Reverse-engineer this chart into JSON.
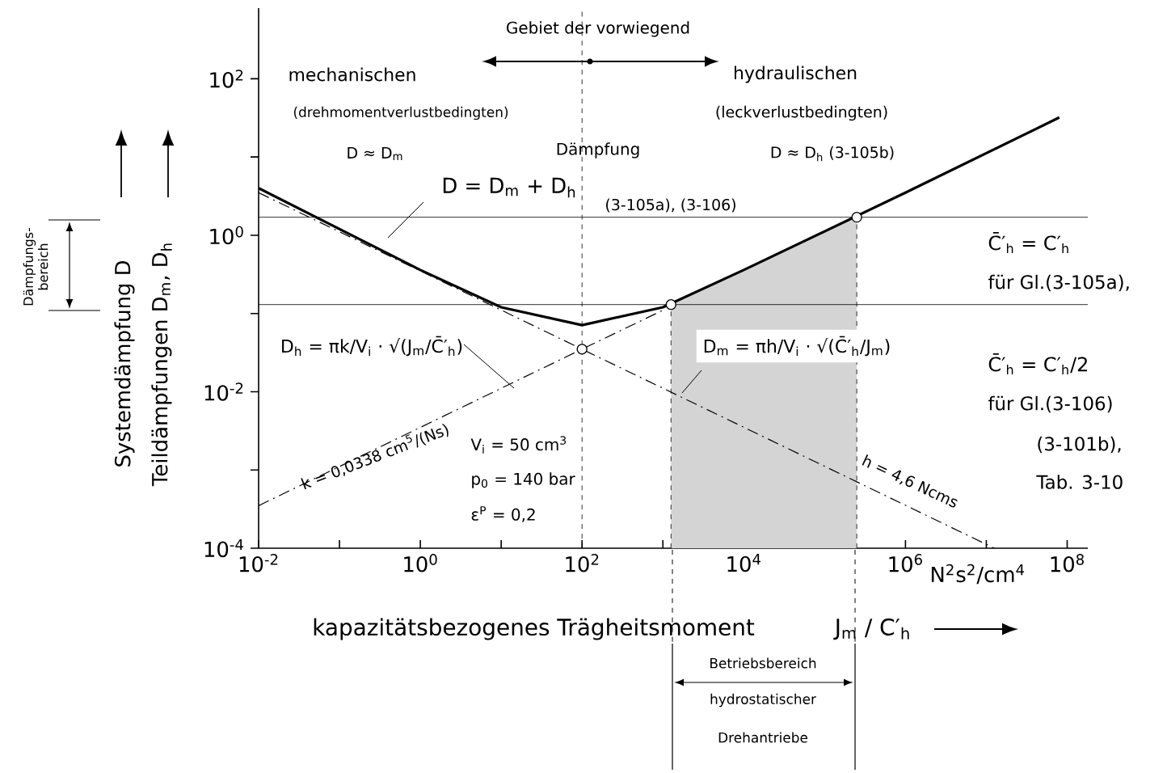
{
  "chart_data": {
    "type": "line",
    "xlabel": "kapazitätsbezogenes Trägheitsmoment",
    "ylabel": "Teildämpfungen D$_{m}$, D$_{h}$",
    "log": "xy",
    "xlim": [
      0.01,
      180000000
    ],
    "ylim": [
      0.0001,
      800
    ],
    "xticks": [
      {
        "value": 0.01,
        "label": "10$^{-2}$"
      },
      {
        "value": 0.1,
        "label": null
      },
      {
        "value": 1,
        "label": "10$^{0}$"
      },
      {
        "value": 10,
        "label": null
      },
      {
        "value": 100,
        "label": "10$^{2}$"
      },
      {
        "value": 1000,
        "label": null
      },
      {
        "value": 10000,
        "label": "10$^{4}$"
      },
      {
        "value": 100000,
        "label": null
      },
      {
        "value": 1000000,
        "label": "10$^{6}$"
      },
      {
        "value": 10000000,
        "label": null
      },
      {
        "value": 100000000,
        "label": "10$^{8}$"
      }
    ],
    "yticks": [
      {
        "value": 0.0001,
        "label": "10$^{-4}$"
      },
      {
        "value": 0.001,
        "label": null
      },
      {
        "value": 0.01,
        "label": "10$^{-2}$"
      },
      {
        "value": 0.1,
        "label": null
      },
      {
        "value": 1,
        "label": "10$^{0}$"
      },
      {
        "value": 10,
        "label": null
      },
      {
        "value": 100,
        "label": "10$^{2}$"
      }
    ],
    "series": [
      {
        "color": "#000000",
        "line_style": "solid",
        "x": [
          0.01,
          1,
          10,
          100,
          1000,
          10000,
          1000000,
          80000000
        ],
        "values": [
          4,
          0.36,
          0.12,
          0.071,
          0.12,
          0.36,
          3.5,
          32
        ]
      },
      {
        "color": "#000000",
        "line_style": "dashed",
        "x": [
          0.01,
          100,
          1000
        ],
        "values": [
          0.00035,
          0.035,
          0.11
        ]
      },
      {
        "color": "#000000",
        "line_style": "dashed",
        "x": [
          0.01,
          100,
          12600000
        ],
        "values": [
          3.5,
          0.035,
          0.0001
        ]
      },
      {
        "type": "scatter",
        "color": "#000000",
        "marker": "circle",
        "x": [
          100,
          1260,
          250000
        ],
        "values": [
          0.035,
          0.13,
          1.7
        ]
      }
    ],
    "ref_lines": [
      {
        "axis": "y",
        "value": 1.7
      },
      {
        "axis": "y",
        "value": 0.13
      },
      {
        "axis": "x",
        "value": 100,
        "line_style": "dashed"
      }
    ],
    "bands": [
      {
        "axis": "x",
        "from": 1260,
        "to": 250000,
        "color": "#d4d4d4"
      }
    ],
    "annotations": [
      "Gebiet der vorwiegend",
      "mechanischen",
      "(drehmomentverlustbedingten)",
      "D ≈ D$_{m}$",
      "Dämpfung",
      "hydraulischen",
      "(leckverlustbedingten)",
      "D ≈ D$_{h}$  (3-105b)",
      "D = D$_{m}$ + D$_{h}$",
      "(3-105a), (3-106)",
      "D$_{h}$ = πk/V$_{i}$ · √(J$_{m}$/C̄′$_{h}$)",
      "D$_{m}$ = πh/V$_{i}$ · √(C̄′$_{h}$/J$_{m}$)",
      "k = 0,0338 cm$^{5}$/(Ns)",
      "h = 4,6 Ncms",
      "V$_{i}$ = 50 cm$^{3}$",
      "p$_{0}$ = 140 bar",
      "ε$^{P}$ = 0,2",
      "C̄′$_{h}$ = C′$_{h}$",
      "für Gl.(3-105a),",
      "C̄′$_{h}$ = C′$_{h}$/2",
      "für Gl.(3-106)",
      "(3-101b),",
      "Tab. 3-10",
      "N$^{2}$s$^{2}$/cm$^{4}$",
      "J$_{m}$ / C′$_{h}$",
      "Systemdämpfung   D",
      "Dämpfungs- bereich",
      "Betriebsbereich",
      "hydrostatischer",
      "Drehantriebe"
    ]
  }
}
